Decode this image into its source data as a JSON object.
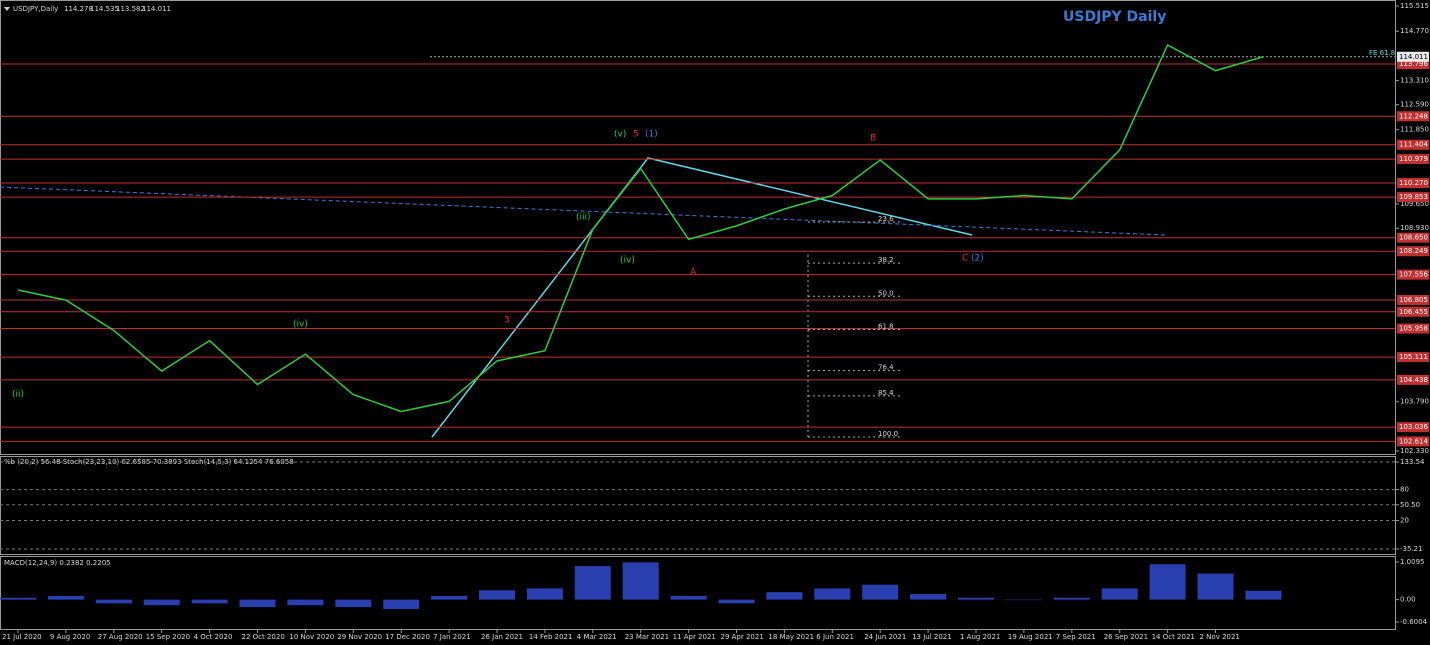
{
  "header": {
    "symbol_info": "USDJPY,Daily",
    "ohlc": [
      "114.278",
      "114.535",
      "113.582",
      "114.011"
    ]
  },
  "chart_data": [
    {
      "type": "line",
      "title": "USDJPY Daily",
      "categories": [
        "21 Jul 2020",
        "9 Aug 2020",
        "27 Aug 2020",
        "15 Sep 2020",
        "4 Oct 2020",
        "22 Oct 2020",
        "10 Nov 2020",
        "29 Nov 2020",
        "17 Dec 2020",
        "7 Jan 2021",
        "26 Jan 2021",
        "14 Feb 2021",
        "4 Mar 2021",
        "23 Mar 2021",
        "11 Apr 2021",
        "29 Apr 2021",
        "18 May 2021",
        "6 Jun 2021",
        "24 Jun 2021",
        "13 Jul 2021",
        "1 Aug 2021",
        "19 Aug 2021",
        "7 Sep 2021",
        "26 Sep 2021",
        "14 Oct 2021",
        "2 Nov 2021",
        null
      ],
      "values": [
        107.1,
        106.8,
        105.9,
        104.7,
        105.6,
        104.3,
        105.2,
        104.0,
        103.5,
        103.8,
        105.0,
        105.3,
        108.9,
        110.7,
        108.6,
        109.0,
        109.5,
        109.9,
        110.95,
        109.8,
        109.8,
        109.9,
        109.8,
        111.25,
        114.36,
        113.6,
        114.011
      ],
      "color": "#2ecc40",
      "ylim": [
        102.33,
        115.515
      ],
      "yticks": [
        115.515,
        {
          "value": 114.77,
          "label": "114.770"
        },
        {
          "value": 113.31,
          "label": "113.310"
        },
        {
          "value": 112.59,
          "label": "112.590"
        },
        {
          "value": 111.85,
          "label": "111.850"
        },
        {
          "value": 109.65,
          "label": "109.650"
        },
        {
          "value": 108.93,
          "label": "108.930"
        },
        {
          "value": 103.79,
          "label": "103.790"
        },
        {
          "value": 102.33,
          "label": "102.330"
        }
      ],
      "levels": [
        113.796,
        112.248,
        111.404,
        110.979,
        {
          "value": 110.27,
          "label": "110.270"
        },
        109.853,
        {
          "value": 108.65,
          "label": "108.650"
        },
        108.249,
        107.556,
        106.805,
        106.455,
        105.958,
        105.111,
        104.438,
        103.036,
        102.614
      ],
      "level_color": "#c03030",
      "current_price": 114.011,
      "fib_label": "FE 61.8",
      "fib_levels": [
        23.6,
        38.2,
        {
          "value": 50,
          "label": "50.0"
        },
        61.8,
        76.4,
        85.4,
        {
          "value": 100,
          "label": "100.0"
        }
      ],
      "annotations": [
        {
          "text": "(v)",
          "color": "#2ecc40"
        },
        {
          "text": "5",
          "color": "#e03030"
        },
        {
          "text": "(1)",
          "color": "#3a7bd5"
        },
        {
          "text": "B",
          "color": "#e03030"
        },
        {
          "text": "A",
          "color": "#e03030"
        },
        {
          "text": "C",
          "color": "#e03030"
        },
        {
          "text": "(2)",
          "color": "#3a7bd5"
        },
        {
          "text": "(iii)",
          "color": "#2ecc40"
        },
        {
          "text": "(iv)",
          "color": "#2ecc40"
        },
        {
          "text": "3",
          "color": "#e03030"
        },
        {
          "text": "(ii)",
          "color": "#2ecc40"
        },
        {
          "text": "(iv)",
          "color": "#2ecc40"
        }
      ]
    },
    {
      "type": "oscillator",
      "title": "%b (20,2) 56.48  Stoch(23,23,10) 62.6585 70.3893  Stoch(14,5,3) 64.1254 76.6058",
      "ylim": [
        -35.21,
        133.54
      ],
      "yticks": [
        133.54,
        80,
        {
          "value": 50.5,
          "label": "50.50"
        },
        20,
        -35.21
      ]
    },
    {
      "type": "histogram",
      "title": "MACD(12,24,9) 0.2382 0.2205",
      "values": [
        0.05,
        0.1,
        -0.1,
        -0.15,
        -0.1,
        -0.2,
        -0.15,
        -0.2,
        -0.25,
        0.1,
        0.25,
        0.3,
        0.9,
        1.0,
        0.1,
        -0.1,
        0.2,
        0.3,
        0.4,
        0.15,
        0.05,
        0.0,
        0.05,
        0.3,
        0.95,
        0.7,
        0.2382
      ],
      "color": "#2a3fb0",
      "ylim": [
        -0.6004,
        1.0095
      ],
      "yticks": [
        1.0095,
        {
          "value": 0,
          "label": "0.00"
        },
        -0.6004
      ]
    }
  ]
}
